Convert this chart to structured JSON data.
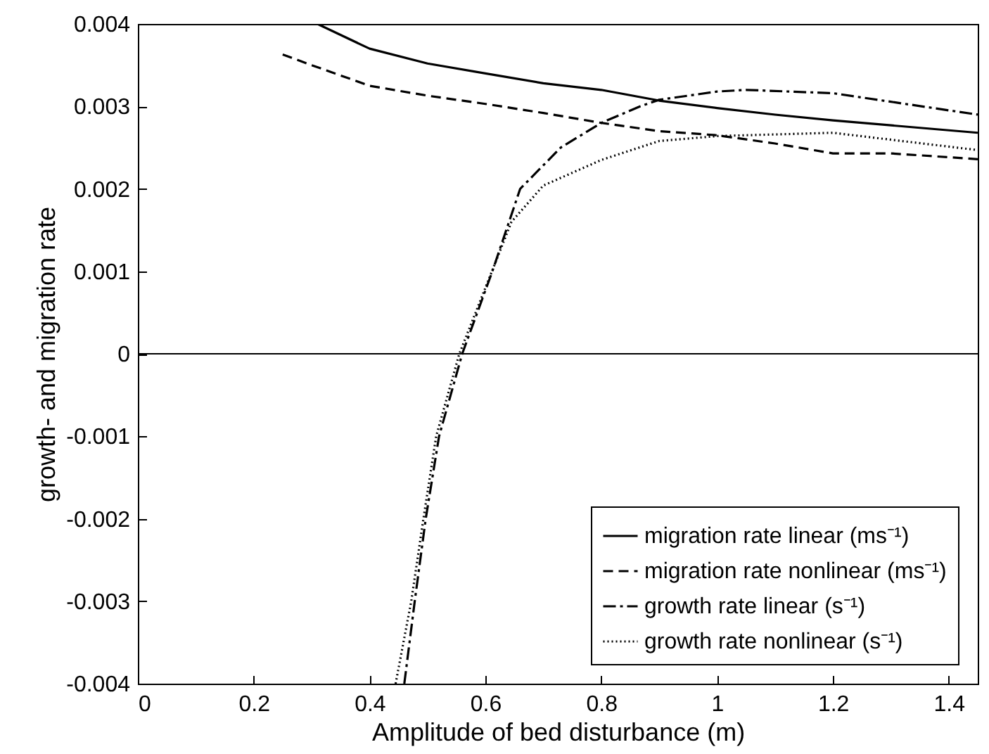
{
  "chart_data": {
    "type": "line",
    "xlabel": "Amplitude of bed disturbance (m)",
    "ylabel": "growth- and migration rate",
    "xlim": [
      0,
      1.45
    ],
    "xticks": [
      0,
      0.2,
      0.4,
      0.6,
      0.8,
      1,
      1.2,
      1.4
    ],
    "ylim": [
      -0.004,
      0.004
    ],
    "yticks": [
      -0.004,
      -0.003,
      -0.002,
      -0.001,
      0,
      0.001,
      0.002,
      0.003,
      0.004
    ],
    "grid": false,
    "legend": "bottom right",
    "ref_lines": [
      {
        "axis": "y",
        "value": 0,
        "color": "#000000"
      }
    ],
    "series": [
      {
        "name": "migration rate linear (ms⁻¹)",
        "color": "#000000",
        "line_style": "solid",
        "x": [
          0.31,
          0.4,
          0.5,
          0.6,
          0.7,
          0.8,
          0.9,
          1.0,
          1.1,
          1.2,
          1.3,
          1.45
        ],
        "values": [
          0.004,
          0.0037,
          0.00352,
          0.0034,
          0.00328,
          0.0032,
          0.00307,
          0.00298,
          0.0029,
          0.00283,
          0.00277,
          0.00268
        ]
      },
      {
        "name": "migration rate nonlinear (ms⁻¹)",
        "color": "#000000",
        "line_style": "dashed",
        "x": [
          0.25,
          0.3,
          0.4,
          0.5,
          0.6,
          0.7,
          0.8,
          0.9,
          1.0,
          1.1,
          1.2,
          1.3,
          1.45
        ],
        "values": [
          0.00363,
          0.0035,
          0.00325,
          0.00313,
          0.00303,
          0.00292,
          0.0028,
          0.0027,
          0.00265,
          0.00255,
          0.00243,
          0.00243,
          0.00236
        ]
      },
      {
        "name": "growth rate linear (s⁻¹)",
        "color": "#000000",
        "line_style": "dashdot",
        "x": [
          0.46,
          0.478,
          0.497,
          0.52,
          0.56,
          0.612,
          0.66,
          0.73,
          0.8,
          0.867,
          0.9,
          1.0,
          1.05,
          1.2,
          1.45
        ],
        "values": [
          -0.004,
          -0.003,
          -0.002,
          -0.001,
          0,
          0.001,
          0.002,
          0.0025,
          0.0028,
          0.003,
          0.00308,
          0.00318,
          0.0032,
          0.00316,
          0.0029
        ]
      },
      {
        "name": "growth rate nonlinear (s⁻¹)",
        "color": "#000000",
        "line_style": "dotted",
        "x": [
          0.445,
          0.472,
          0.493,
          0.515,
          0.555,
          0.6,
          0.645,
          0.7,
          0.8,
          0.9,
          1.0,
          1.2,
          1.45
        ],
        "values": [
          -0.004,
          -0.003,
          -0.002,
          -0.001,
          0,
          0.0008,
          0.0016,
          0.00204,
          0.00235,
          0.00258,
          0.00264,
          0.00268,
          0.00247
        ]
      }
    ]
  }
}
